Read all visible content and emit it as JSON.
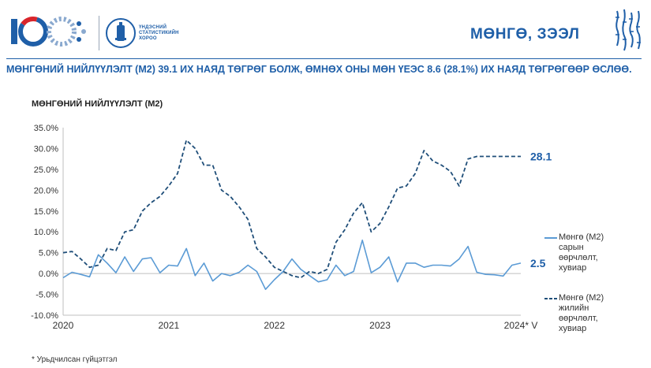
{
  "header": {
    "logo_text": "100",
    "org_name": "ҮНДЭСНИЙ\nСТАТИСТИКИЙН\nХОРОО",
    "section_title": "МӨНГӨ, ЗЭЭЛ"
  },
  "headline": "МӨНГӨНИЙ НИЙЛҮҮЛЭЛТ (М2) 39.1 ИХ НАЯД ТӨГРӨГ БОЛЖ, ӨМНӨХ ОНЫ МӨН ҮЕЭС 8.6 (28.1%) ИХ НАЯД ТӨГРӨГӨӨР ӨСЛӨӨ.",
  "colors": {
    "brand": "#1f5fa8",
    "series_monthly": "#5b9bd5",
    "series_annual": "#1f4e79"
  },
  "chart_data": {
    "type": "line",
    "title": "МӨНГӨНИЙ НИЙЛҮҮЛЭЛТ (М2)",
    "ylim": [
      -10,
      35
    ],
    "yticks": [
      -10,
      -5,
      0,
      5,
      10,
      15,
      20,
      25,
      30,
      35
    ],
    "ytick_labels": [
      "-10.0%",
      "-5.0%",
      "0.0%",
      "5.0%",
      "10.0%",
      "15.0%",
      "20.0%",
      "25.0%",
      "30.0%",
      "35.0%"
    ],
    "xtick_labels": [
      "2020",
      "2021",
      "2022",
      "2023",
      "2024* V"
    ],
    "grid": false,
    "legend_position": "right",
    "x": [
      "2020-01",
      "2020-02",
      "2020-03",
      "2020-04",
      "2020-05",
      "2020-06",
      "2020-07",
      "2020-08",
      "2020-09",
      "2020-10",
      "2020-11",
      "2020-12",
      "2021-01",
      "2021-02",
      "2021-03",
      "2021-04",
      "2021-05",
      "2021-06",
      "2021-07",
      "2021-08",
      "2021-09",
      "2021-10",
      "2021-11",
      "2021-12",
      "2022-01",
      "2022-02",
      "2022-03",
      "2022-04",
      "2022-05",
      "2022-06",
      "2022-07",
      "2022-08",
      "2022-09",
      "2022-10",
      "2022-11",
      "2022-12",
      "2023-01",
      "2023-02",
      "2023-03",
      "2023-04",
      "2023-05",
      "2023-06",
      "2023-07",
      "2023-08",
      "2023-09",
      "2023-10",
      "2023-11",
      "2023-12",
      "2024-01",
      "2024-02",
      "2024-03",
      "2024-04",
      "2024-05"
    ],
    "series": [
      {
        "name": "Мөнгө (М2) сарын өөрчлөлт, хувиар",
        "style": "solid",
        "values": [
          -1.0,
          0.3,
          -0.2,
          -0.8,
          4.5,
          2.5,
          0.2,
          4.0,
          0.5,
          3.5,
          3.8,
          0.2,
          2.0,
          1.8,
          6.0,
          -0.5,
          2.5,
          -1.8,
          0.0,
          -0.5,
          0.3,
          2.0,
          0.5,
          -3.8,
          -1.5,
          0.5,
          3.5,
          1.0,
          -0.5,
          -2.0,
          -1.5,
          2.0,
          -0.5,
          0.5,
          8.0,
          0.2,
          1.5,
          4.0,
          -2.0,
          2.5,
          2.5,
          1.5,
          2.0,
          2.0,
          1.8,
          3.5,
          6.5,
          0.3,
          -0.2,
          -0.3,
          -0.6,
          2.0,
          2.5
        ],
        "end_label": "2.5"
      },
      {
        "name": "Мөнгө (М2) жилийн өөрчлөлт, хувиар",
        "style": "dashed",
        "values": [
          5.0,
          5.3,
          3.5,
          1.5,
          2.0,
          6.0,
          5.5,
          10.0,
          10.5,
          15.0,
          17.0,
          18.5,
          21.0,
          24.0,
          32.0,
          30.0,
          26.0,
          26.0,
          20.0,
          18.5,
          16.0,
          13.0,
          6.0,
          4.0,
          1.5,
          0.5,
          -0.5,
          -1.0,
          0.5,
          0.0,
          1.0,
          7.5,
          10.5,
          14.5,
          17.0,
          10.0,
          12.0,
          16.0,
          20.5,
          21.0,
          24.0,
          29.5,
          27.0,
          26.0,
          24.5,
          21.0,
          27.5,
          28.1,
          28.1,
          28.1,
          28.1,
          28.1,
          28.1
        ],
        "end_label": "28.1"
      }
    ]
  },
  "footnote": "* Урьдчилсан гүйцэтгэл"
}
